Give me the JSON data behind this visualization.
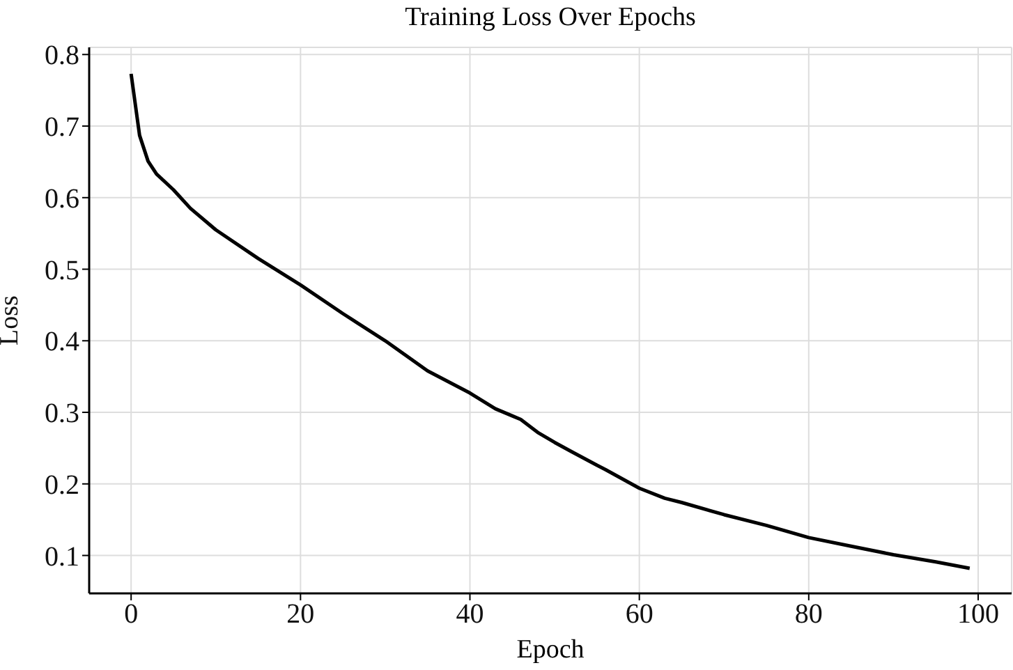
{
  "chart_data": {
    "type": "line",
    "title": "Training Loss Over Epochs",
    "xlabel": "Epoch",
    "ylabel": "Loss",
    "x": [
      0,
      1,
      2,
      3,
      5,
      7,
      10,
      15,
      20,
      25,
      30,
      35,
      40,
      43,
      45,
      46,
      48,
      50,
      52,
      55,
      56,
      60,
      63,
      65,
      70,
      75,
      80,
      85,
      90,
      95,
      99
    ],
    "series": [
      {
        "color": "#000000",
        "values": [
          0.773,
          0.687,
          0.651,
          0.633,
          0.611,
          0.585,
          0.555,
          0.515,
          0.478,
          0.438,
          0.4,
          0.358,
          0.327,
          0.305,
          0.295,
          0.29,
          0.272,
          0.258,
          0.245,
          0.226,
          0.22,
          0.194,
          0.18,
          0.174,
          0.157,
          0.142,
          0.125,
          0.113,
          0.101,
          0.091,
          0.082
        ]
      }
    ],
    "xlim": [
      -4.95,
      103.95
    ],
    "xticks": [
      0,
      20,
      40,
      60,
      80,
      100
    ],
    "ylim": [
      0.047,
      0.81
    ],
    "yticks": [
      0.1,
      0.2,
      0.3,
      0.4,
      0.5,
      0.6,
      0.7,
      0.8
    ],
    "grid": true,
    "legend": false,
    "marker": "none",
    "line_style": "solid"
  }
}
